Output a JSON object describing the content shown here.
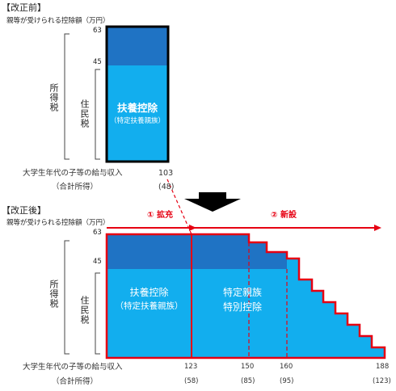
{
  "before": {
    "label": "【改正前】",
    "unit_label": "親等が受けられる控除額（万円）",
    "tick_top": "63",
    "tick_mid": "45",
    "bracket_outer": "所得税",
    "bracket_inner": "住民税",
    "box_title": "扶養控除",
    "box_sub": "（特定扶養親族）",
    "income_label": "大学生年代の子等の給与収入",
    "income_value": "103",
    "total_label": "（合計所得）",
    "total_value": "(48)"
  },
  "after": {
    "label": "【改正後】",
    "unit_label": "親等が受けられる控除額（万円）",
    "tick_top": "63",
    "tick_mid": "45",
    "bracket_outer": "所得税",
    "bracket_inner": "住民税",
    "expand_label": "① 拡充",
    "new_label": "② 新設",
    "box1_title": "扶養控除",
    "box1_sub": "（特定扶養親族）",
    "box2_line1": "特定親族",
    "box2_line2": "特別控除",
    "income_label": "大学生年代の子等の給与収入",
    "total_label": "（合計所得）",
    "x_ticks": [
      "123",
      "150",
      "160",
      "188"
    ],
    "x_totals": [
      "(58)",
      "(85)",
      "(95)",
      "(123)"
    ]
  },
  "colors": {
    "dark_blue": "#0070c0",
    "light_blue": "#00b0f0",
    "red": "#e60012",
    "black": "#000000"
  }
}
